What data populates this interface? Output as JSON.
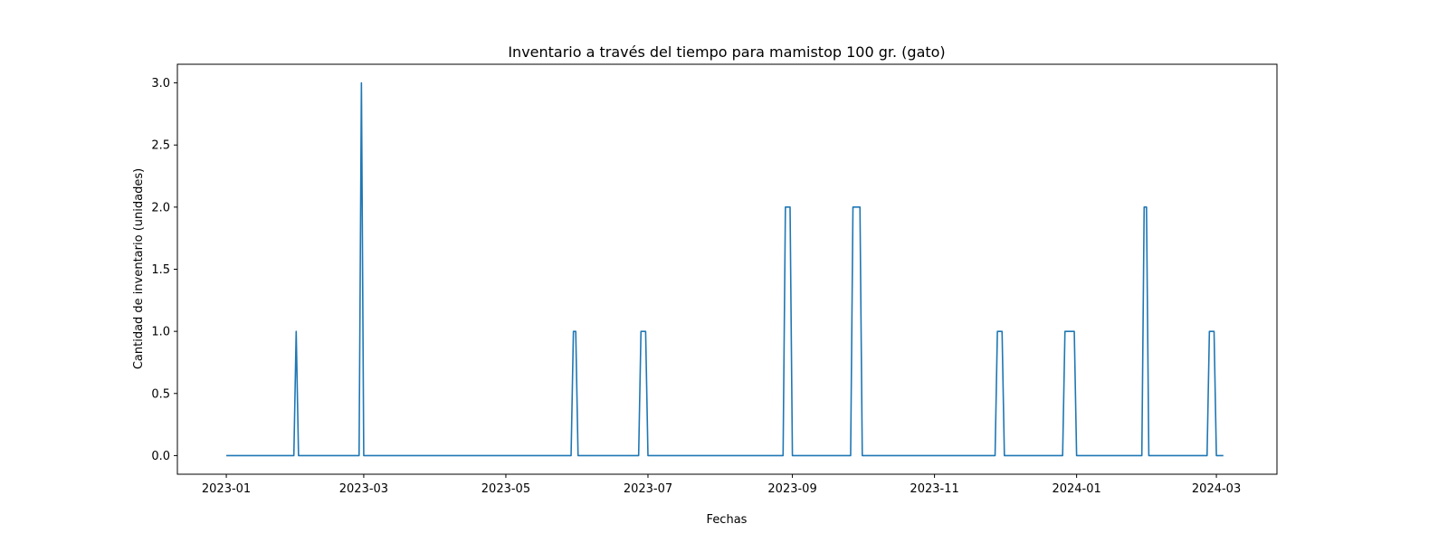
{
  "chart_data": {
    "type": "line",
    "title": "Inventario a través del tiempo para mamistop 100 gr. (gato)",
    "xlabel": "Fechas",
    "ylabel": "Cantidad de inventario (unidades)",
    "x_type": "date",
    "xlim": [
      "2022-12-11",
      "2024-03-27"
    ],
    "ylim": [
      -0.15,
      3.15
    ],
    "grid": false,
    "line_color": "#1f77b4",
    "x_ticks": [
      "2023-01",
      "2023-03",
      "2023-05",
      "2023-07",
      "2023-09",
      "2023-11",
      "2024-01",
      "2024-03"
    ],
    "x_tick_dates": [
      "2023-01-01",
      "2023-03-01",
      "2023-05-01",
      "2023-07-01",
      "2023-09-01",
      "2023-11-01",
      "2024-01-01",
      "2024-03-01"
    ],
    "y_ticks": [
      0.0,
      0.5,
      1.0,
      1.5,
      2.0,
      2.5,
      3.0
    ],
    "y_tick_labels": [
      "0.0",
      "0.5",
      "1.0",
      "1.5",
      "2.0",
      "2.5",
      "3.0"
    ],
    "series": [
      {
        "points": [
          [
            "2023-01-01",
            0
          ],
          [
            "2023-01-30",
            0
          ],
          [
            "2023-01-31",
            1
          ],
          [
            "2023-02-01",
            0
          ],
          [
            "2023-02-27",
            0
          ],
          [
            "2023-02-28",
            3
          ],
          [
            "2023-03-01",
            0
          ],
          [
            "2023-05-29",
            0
          ],
          [
            "2023-05-30",
            1
          ],
          [
            "2023-05-31",
            1
          ],
          [
            "2023-06-01",
            0
          ],
          [
            "2023-06-27",
            0
          ],
          [
            "2023-06-28",
            1
          ],
          [
            "2023-06-30",
            1
          ],
          [
            "2023-07-01",
            0
          ],
          [
            "2023-08-28",
            0
          ],
          [
            "2023-08-29",
            2
          ],
          [
            "2023-08-31",
            2
          ],
          [
            "2023-09-01",
            0
          ],
          [
            "2023-09-26",
            0
          ],
          [
            "2023-09-27",
            2
          ],
          [
            "2023-09-30",
            2
          ],
          [
            "2023-10-01",
            0
          ],
          [
            "2023-11-27",
            0
          ],
          [
            "2023-11-28",
            1
          ],
          [
            "2023-11-30",
            1
          ],
          [
            "2023-12-01",
            0
          ],
          [
            "2023-12-26",
            0
          ],
          [
            "2023-12-27",
            1
          ],
          [
            "2023-12-31",
            1
          ],
          [
            "2024-01-01",
            0
          ],
          [
            "2024-01-29",
            0
          ],
          [
            "2024-01-30",
            2
          ],
          [
            "2024-01-31",
            2
          ],
          [
            "2024-02-01",
            0
          ],
          [
            "2024-02-26",
            0
          ],
          [
            "2024-02-27",
            1
          ],
          [
            "2024-02-29",
            1
          ],
          [
            "2024-03-01",
            0
          ],
          [
            "2024-03-04",
            0
          ]
        ]
      }
    ]
  }
}
